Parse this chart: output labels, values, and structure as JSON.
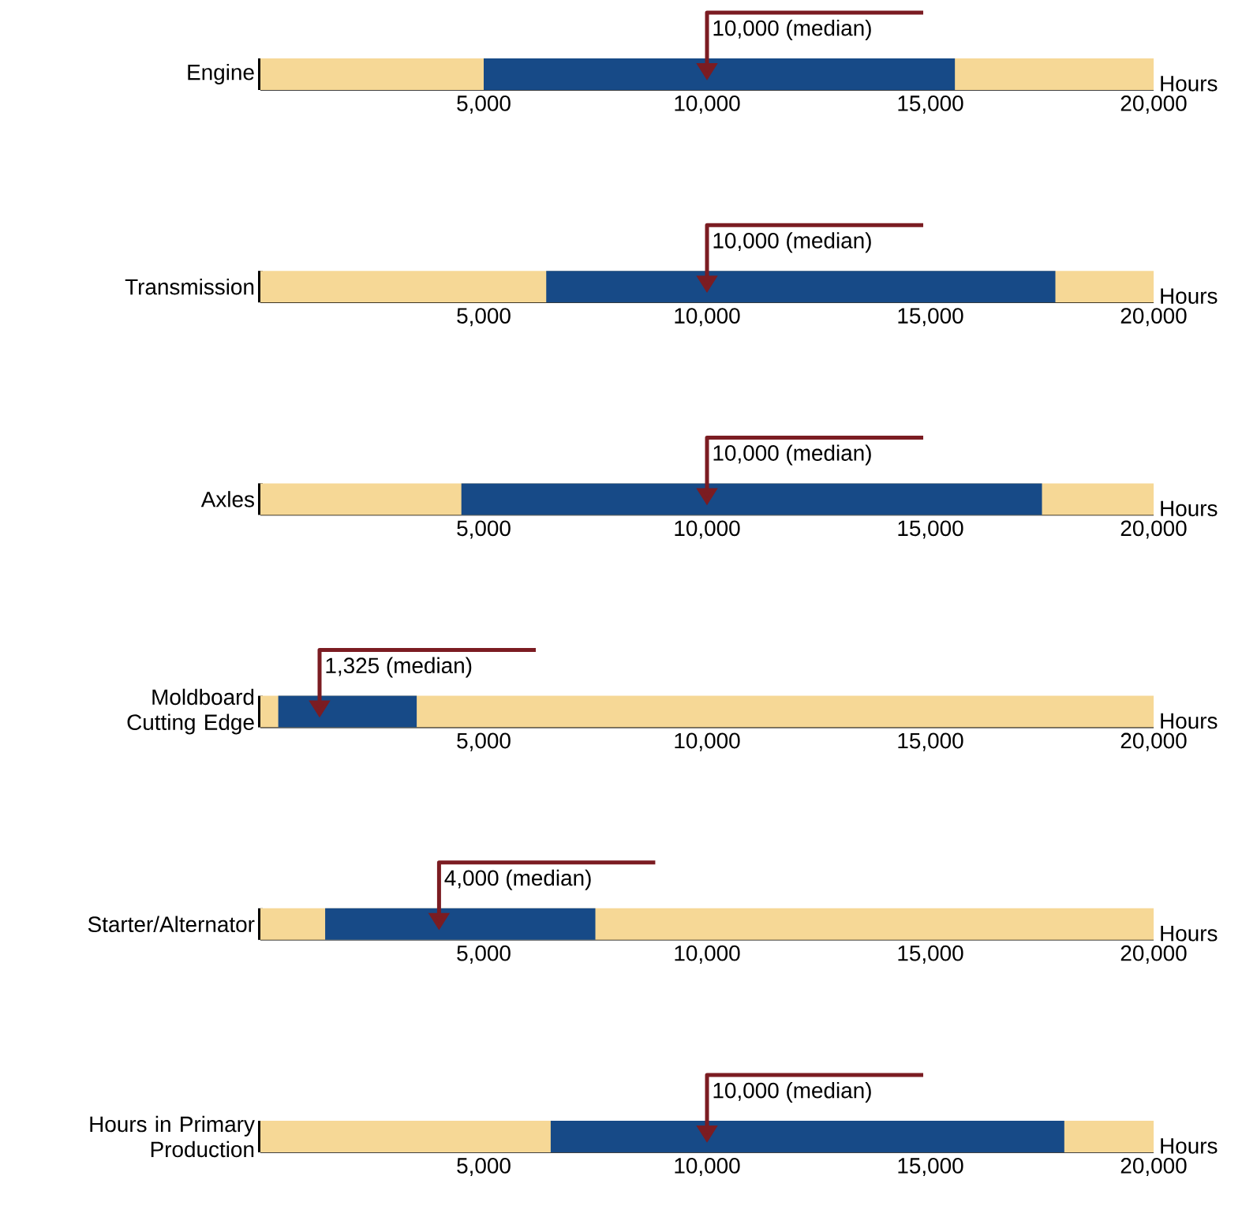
{
  "chart_data": [
    {
      "type": "bar",
      "orientation": "horizontal",
      "categories": [
        "Engine"
      ],
      "base": [
        5000
      ],
      "values": [
        10550
      ],
      "color": "#174a87",
      "bands": [
        {
          "axis": "x",
          "from": 0,
          "to": 20000,
          "color": "#f6d896"
        }
      ],
      "xlim": [
        0,
        20000
      ],
      "xticks": [
        {
          "value": 5000,
          "label": "5,000"
        },
        {
          "value": 10000,
          "label": "10,000"
        },
        {
          "value": 15000,
          "label": "15,000"
        },
        {
          "value": 20000,
          "label": "20,000"
        }
      ],
      "xlabel": "Hours",
      "ref_lines": [
        {
          "axis": "x",
          "value": 10000,
          "label": "10,000 (median)",
          "color": "#7b1c22"
        }
      ]
    },
    {
      "type": "bar",
      "orientation": "horizontal",
      "categories": [
        "Transmission"
      ],
      "base": [
        6400
      ],
      "values": [
        11400
      ],
      "color": "#174a87",
      "bands": [
        {
          "axis": "x",
          "from": 0,
          "to": 20000,
          "color": "#f6d896"
        }
      ],
      "xlim": [
        0,
        20000
      ],
      "xticks": [
        {
          "value": 5000,
          "label": "5,000"
        },
        {
          "value": 10000,
          "label": "10,000"
        },
        {
          "value": 15000,
          "label": "15,000"
        },
        {
          "value": 20000,
          "label": "20,000"
        }
      ],
      "xlabel": "Hours",
      "ref_lines": [
        {
          "axis": "x",
          "value": 10000,
          "label": "10,000 (median)",
          "color": "#7b1c22"
        }
      ]
    },
    {
      "type": "bar",
      "orientation": "horizontal",
      "categories": [
        "Axles"
      ],
      "base": [
        4500
      ],
      "values": [
        13000
      ],
      "color": "#174a87",
      "bands": [
        {
          "axis": "x",
          "from": 0,
          "to": 20000,
          "color": "#f6d896"
        }
      ],
      "xlim": [
        0,
        20000
      ],
      "xticks": [
        {
          "value": 5000,
          "label": "5,000"
        },
        {
          "value": 10000,
          "label": "10,000"
        },
        {
          "value": 15000,
          "label": "15,000"
        },
        {
          "value": 20000,
          "label": "20,000"
        }
      ],
      "xlabel": "Hours",
      "ref_lines": [
        {
          "axis": "x",
          "value": 10000,
          "label": "10,000 (median)",
          "color": "#7b1c22"
        }
      ]
    },
    {
      "type": "bar",
      "orientation": "horizontal",
      "categories": [
        "Moldboard Cutting Edge"
      ],
      "base": [
        400
      ],
      "values": [
        3100
      ],
      "color": "#174a87",
      "bands": [
        {
          "axis": "x",
          "from": 0,
          "to": 20000,
          "color": "#f6d896"
        }
      ],
      "xlim": [
        0,
        20000
      ],
      "xticks": [
        {
          "value": 5000,
          "label": "5,000"
        },
        {
          "value": 10000,
          "label": "10,000"
        },
        {
          "value": 15000,
          "label": "15,000"
        },
        {
          "value": 20000,
          "label": "20,000"
        }
      ],
      "xlabel": "Hours",
      "ref_lines": [
        {
          "axis": "x",
          "value": 1325,
          "label": "1,325 (median)",
          "color": "#7b1c22"
        }
      ]
    },
    {
      "type": "bar",
      "orientation": "horizontal",
      "categories": [
        "Starter/Alternator"
      ],
      "base": [
        1450
      ],
      "values": [
        6050
      ],
      "color": "#174a87",
      "bands": [
        {
          "axis": "x",
          "from": 0,
          "to": 20000,
          "color": "#f6d896"
        }
      ],
      "xlim": [
        0,
        20000
      ],
      "xticks": [
        {
          "value": 5000,
          "label": "5,000"
        },
        {
          "value": 10000,
          "label": "10,000"
        },
        {
          "value": 15000,
          "label": "15,000"
        },
        {
          "value": 20000,
          "label": "20,000"
        }
      ],
      "xlabel": "Hours",
      "ref_lines": [
        {
          "axis": "x",
          "value": 4000,
          "label": "4,000 (median)",
          "color": "#7b1c22"
        }
      ]
    },
    {
      "type": "bar",
      "orientation": "horizontal",
      "categories": [
        "Hours in Primary Production"
      ],
      "base": [
        6500
      ],
      "values": [
        11500
      ],
      "color": "#174a87",
      "bands": [
        {
          "axis": "x",
          "from": 0,
          "to": 20000,
          "color": "#f6d896"
        }
      ],
      "xlim": [
        0,
        20000
      ],
      "xticks": [
        {
          "value": 5000,
          "label": "5,000"
        },
        {
          "value": 10000,
          "label": "10,000"
        },
        {
          "value": 15000,
          "label": "15,000"
        },
        {
          "value": 20000,
          "label": "20,000"
        }
      ],
      "xlabel": "Hours",
      "ref_lines": [
        {
          "axis": "x",
          "value": 10000,
          "label": "10,000 (median)",
          "color": "#7b1c22"
        }
      ]
    }
  ]
}
